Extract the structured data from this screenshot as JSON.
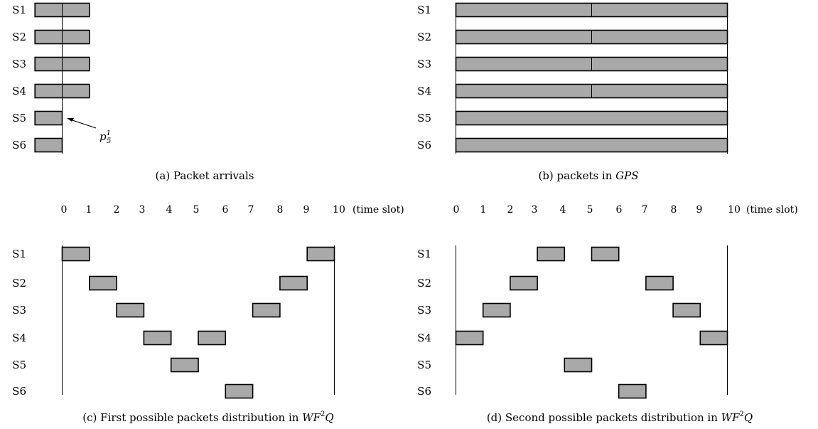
{
  "colors": {
    "packet_fill": "#a9a9a9",
    "stroke": "#000000",
    "background": "#ffffff"
  },
  "row_labels": [
    "S1",
    "S2",
    "S3",
    "S4",
    "S5",
    "S6"
  ],
  "axis": {
    "ticks": [
      "0",
      "1",
      "2",
      "3",
      "4",
      "5",
      "6",
      "7",
      "8",
      "9",
      "10"
    ],
    "unit": "(time slot)"
  },
  "panels": {
    "a": {
      "caption": "(a) Packet arrivals",
      "annotation": "p",
      "annotation_sub": "5",
      "annotation_sup": "1",
      "packets": [
        {
          "row": 0,
          "start": -1,
          "end": 1,
          "divider": 0
        },
        {
          "row": 1,
          "start": -1,
          "end": 1,
          "divider": 0
        },
        {
          "row": 2,
          "start": -1,
          "end": 1,
          "divider": 0
        },
        {
          "row": 3,
          "start": -1,
          "end": 1,
          "divider": 0
        },
        {
          "row": 4,
          "start": -1,
          "end": 0
        },
        {
          "row": 5,
          "start": -1,
          "end": 0
        }
      ]
    },
    "b": {
      "caption_prefix": "(b) packets in ",
      "caption_italic": "GPS",
      "packets": [
        {
          "row": 0,
          "start": 0,
          "end": 10,
          "divider": 5
        },
        {
          "row": 1,
          "start": 0,
          "end": 10,
          "divider": 5
        },
        {
          "row": 2,
          "start": 0,
          "end": 10,
          "divider": 5
        },
        {
          "row": 3,
          "start": 0,
          "end": 10,
          "divider": 5
        },
        {
          "row": 4,
          "start": 0,
          "end": 10
        },
        {
          "row": 5,
          "start": 0,
          "end": 10
        }
      ]
    },
    "c": {
      "caption_prefix": "(c) First possible packets distribution in ",
      "caption_italic": "WF",
      "caption_sup": "2",
      "caption_italic2": "Q",
      "packets": [
        {
          "row": 0,
          "slot": 0
        },
        {
          "row": 1,
          "slot": 1
        },
        {
          "row": 2,
          "slot": 2
        },
        {
          "row": 3,
          "slot": 3
        },
        {
          "row": 4,
          "slot": 4
        },
        {
          "row": 3,
          "slot": 5
        },
        {
          "row": 5,
          "slot": 6
        },
        {
          "row": 2,
          "slot": 7
        },
        {
          "row": 1,
          "slot": 8
        },
        {
          "row": 0,
          "slot": 9
        }
      ]
    },
    "d": {
      "caption_prefix": "(d) Second possible packets distribution in ",
      "caption_italic": "WF",
      "caption_sup": "2",
      "caption_italic2": "Q",
      "packets": [
        {
          "row": 3,
          "slot": 0
        },
        {
          "row": 2,
          "slot": 1
        },
        {
          "row": 1,
          "slot": 2
        },
        {
          "row": 0,
          "slot": 3
        },
        {
          "row": 4,
          "slot": 4
        },
        {
          "row": 0,
          "slot": 5
        },
        {
          "row": 5,
          "slot": 6
        },
        {
          "row": 1,
          "slot": 7
        },
        {
          "row": 2,
          "slot": 8
        },
        {
          "row": 3,
          "slot": 9
        }
      ]
    }
  }
}
